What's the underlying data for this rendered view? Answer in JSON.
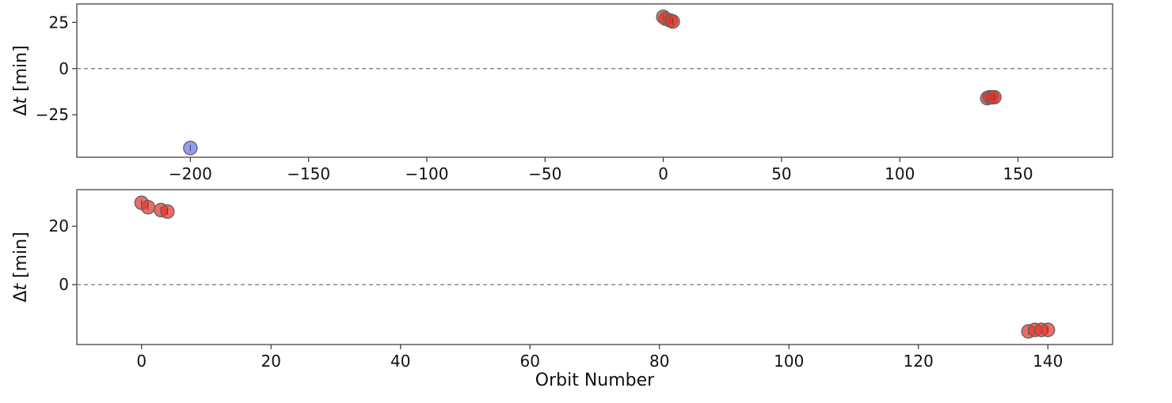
{
  "chart_data": [
    {
      "type": "scatter",
      "ylabel_prefix": "Δ",
      "ylabel_var": "t",
      "ylabel_unit": " [min]",
      "xlabel": "",
      "xlim": [
        -248,
        190
      ],
      "ylim": [
        -48,
        35
      ],
      "xticks": [
        -200,
        -150,
        -100,
        -50,
        0,
        50,
        100,
        150
      ],
      "yticks": [
        25,
        0,
        -25
      ],
      "reference_line": 0,
      "series": [
        {
          "color": "#6b78f0",
          "points": [
            {
              "x": -200,
              "y": -43
            }
          ]
        },
        {
          "color": "#e8332a",
          "points": [
            {
              "x": 0,
              "y": 28
            },
            {
              "x": 1,
              "y": 27
            },
            {
              "x": 3,
              "y": 26
            },
            {
              "x": 4,
              "y": 25.5
            },
            {
              "x": 137,
              "y": -16
            },
            {
              "x": 138,
              "y": -15.5
            },
            {
              "x": 139,
              "y": -15.5
            },
            {
              "x": 140,
              "y": -15.5
            }
          ]
        }
      ]
    },
    {
      "type": "scatter",
      "ylabel_prefix": "Δ",
      "ylabel_var": "t",
      "ylabel_unit": " [min]",
      "xlabel": "Orbit Number",
      "xlim": [
        -10,
        150
      ],
      "ylim": [
        -20.5,
        32.5
      ],
      "xticks": [
        0,
        20,
        40,
        60,
        80,
        100,
        120,
        140
      ],
      "yticks": [
        20,
        0
      ],
      "reference_line": 0,
      "series": [
        {
          "color": "#e8332a",
          "points": [
            {
              "x": 0,
              "y": 28
            },
            {
              "x": 1,
              "y": 26.5
            },
            {
              "x": 3,
              "y": 25.5
            },
            {
              "x": 4,
              "y": 25
            },
            {
              "x": 137,
              "y": -16
            },
            {
              "x": 138,
              "y": -15.5
            },
            {
              "x": 139,
              "y": -15.5
            },
            {
              "x": 140,
              "y": -15.5
            }
          ]
        }
      ]
    }
  ]
}
